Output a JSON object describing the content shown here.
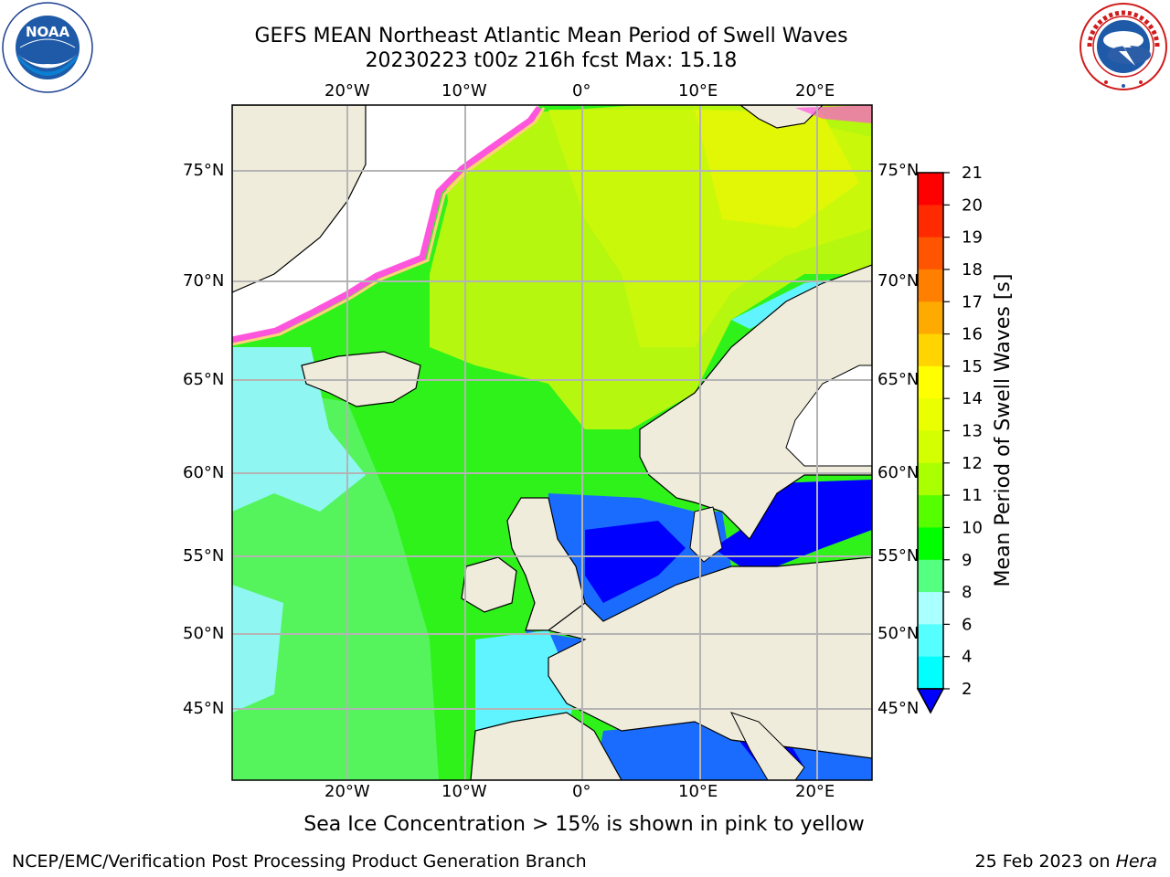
{
  "title": {
    "line1": "GEFS MEAN Northeast Atlantic Mean Period of Swell Waves",
    "line2": "20230223 t00z 216h fcst   Max: 15.18"
  },
  "logos": {
    "left": {
      "icon": "noaa-logo",
      "text": "NOAA",
      "ring_text": "NATIONAL OCEANIC AND ATMOSPHERIC ADMINISTRATION · U.S. DEPARTMENT OF COMMERCE"
    },
    "right": {
      "icon": "nws-logo",
      "ring_text": "NATIONAL WEATHER SERVICE"
    }
  },
  "map": {
    "projection": "lat-lon",
    "lon_ticks": [
      -20,
      -10,
      0,
      10,
      20
    ],
    "lat_ticks": [
      75,
      70,
      65,
      60,
      55,
      50,
      45
    ],
    "lon_tick_labels": [
      "20°W",
      "10°W",
      "0°",
      "10°E",
      "20°E"
    ],
    "lat_tick_labels": [
      "75°N",
      "70°N",
      "65°N",
      "60°N",
      "55°N",
      "50°N",
      "45°N"
    ],
    "grid": true,
    "land_color": "#efecdc",
    "ice_mask_color": "#ffffff"
  },
  "colorbar": {
    "label": "Mean Period of Swell Waves [s]",
    "ticks": [
      "21",
      "20",
      "19",
      "18",
      "17",
      "16",
      "15",
      "14",
      "13",
      "12",
      "11",
      "10",
      "9",
      "8",
      "6",
      "4",
      "2"
    ],
    "colors": [
      "#ff0000",
      "#ff2a00",
      "#ff5500",
      "#ff7f00",
      "#ffaa00",
      "#ffd400",
      "#ffff00",
      "#eaff00",
      "#d4ff00",
      "#aaff00",
      "#55ff00",
      "#00ff00",
      "#55ff7f",
      "#aaffff",
      "#55ffff",
      "#00ffff",
      "#00aaff",
      "#0055ff"
    ],
    "extend_color": "#0000ff"
  },
  "note": "Sea Ice Concentration > 15% is shown in pink to yellow",
  "footer": {
    "left": "NCEP/EMC/Verification Post Processing Product Generation Branch",
    "date": "25 Feb 2023 on",
    "machine": "Hera"
  }
}
